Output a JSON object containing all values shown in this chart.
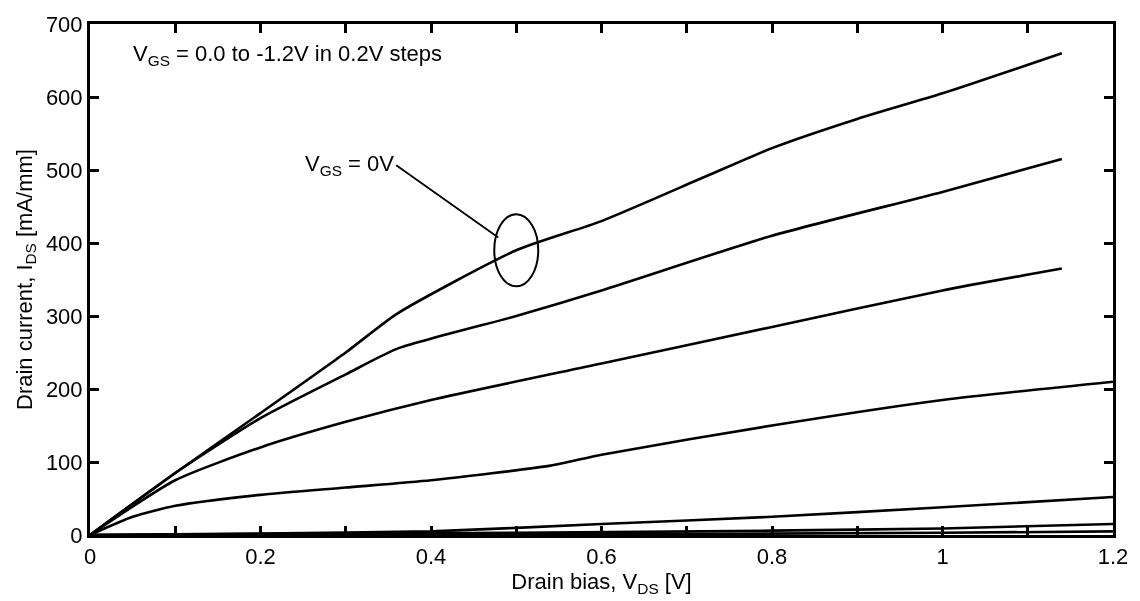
{
  "chart_data": {
    "type": "line",
    "xlabel": "Drain bias, V$_{DS}$ [V]",
    "ylabel": "Drain current, I$_{DS}$ [mA/mm]",
    "xlim": [
      0,
      1.2
    ],
    "ylim": [
      0,
      700
    ],
    "xticks": [
      0,
      {
        "value": 0.1,
        "label": null
      },
      0.2,
      {
        "value": 0.3,
        "label": null
      },
      0.4,
      {
        "value": 0.5,
        "label": null
      },
      0.6,
      {
        "value": 0.7,
        "label": null
      },
      0.8,
      {
        "value": 0.9,
        "label": null
      },
      1,
      {
        "value": 1.1,
        "label": null
      },
      1.2
    ],
    "yticks": [
      0,
      100,
      200,
      300,
      400,
      500,
      600,
      700
    ],
    "marker": "none",
    "line_style": "solid",
    "annotations": [
      "V$_{GS}$ = 0.0 to -1.2V in 0.2V steps",
      {
        "text": "V$_{GS}$ = 0V",
        "x": 0.5,
        "y": 390
      }
    ],
    "series": [
      {
        "color": "#000000",
        "x": [
          0,
          0.1,
          0.2,
          0.3,
          0.36,
          0.5,
          0.6,
          0.72,
          0.8,
          0.9,
          1.0,
          1.14
        ],
        "values": [
          0,
          85,
          167,
          250,
          303,
          390,
          430,
          490,
          530,
          570,
          605,
          660
        ]
      },
      {
        "color": "#000000",
        "x": [
          0,
          0.1,
          0.2,
          0.3,
          0.36,
          0.5,
          0.6,
          0.8,
          1.0,
          1.14
        ],
        "values": [
          0,
          85,
          160,
          220,
          255,
          300,
          335,
          410,
          470,
          515
        ]
      },
      {
        "color": "#000000",
        "x": [
          0,
          0.1,
          0.2,
          0.3,
          0.4,
          0.6,
          0.8,
          1.0,
          1.14
        ],
        "values": [
          0,
          75,
          120,
          155,
          185,
          235,
          285,
          335,
          365
        ]
      },
      {
        "color": "#000000",
        "x": [
          0,
          0.05,
          0.1,
          0.2,
          0.3,
          0.4,
          0.54,
          0.6,
          0.8,
          1.0,
          1.2
        ],
        "values": [
          0,
          25,
          40,
          55,
          65,
          75,
          95,
          110,
          150,
          185,
          210
        ]
      },
      {
        "color": "#000000",
        "x": [
          0,
          0.2,
          0.4,
          0.6,
          0.8,
          1.0,
          1.2
        ],
        "values": [
          0,
          2,
          5,
          15,
          25,
          38,
          52
        ]
      },
      {
        "color": "#000000",
        "x": [
          0,
          0.5,
          0.8,
          1.0,
          1.2
        ],
        "values": [
          0,
          3,
          6,
          9,
          15
        ]
      },
      {
        "color": "#000000",
        "x": [
          0,
          0.6,
          1.0,
          1.2
        ],
        "values": [
          0,
          1,
          3,
          5
        ]
      }
    ]
  }
}
